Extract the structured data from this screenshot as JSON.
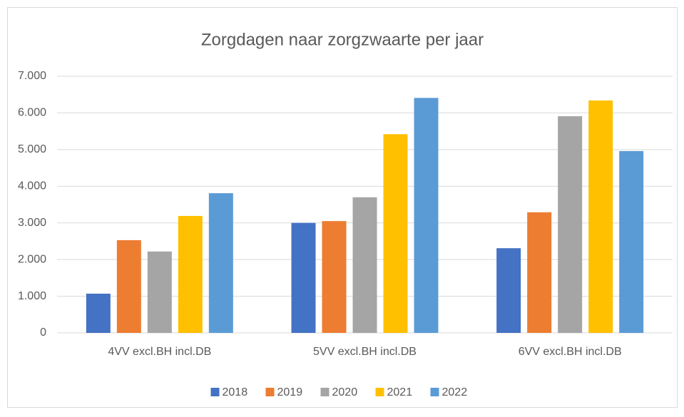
{
  "chart_data": {
    "type": "bar",
    "title": "Zorgdagen naar zorgzwaarte per jaar",
    "categories": [
      "4VV excl.BH incl.DB",
      "5VV excl.BH incl.DB",
      "6VV excl.BH incl.DB"
    ],
    "series": [
      {
        "name": "2018",
        "color": "#4472c4",
        "values": [
          1070,
          3000,
          2310
        ]
      },
      {
        "name": "2019",
        "color": "#ed7d31",
        "values": [
          2530,
          3050,
          3290
        ]
      },
      {
        "name": "2020",
        "color": "#a5a5a5",
        "values": [
          2220,
          3700,
          5910
        ]
      },
      {
        "name": "2021",
        "color": "#ffc000",
        "values": [
          3190,
          5420,
          6340
        ]
      },
      {
        "name": "2022",
        "color": "#5b9bd5",
        "values": [
          3810,
          6410,
          4960
        ]
      }
    ],
    "ylim": [
      0,
      7000
    ],
    "yticks": [
      0,
      {
        "value": 1000,
        "label": "1.000"
      },
      {
        "value": 2000,
        "label": "2.000"
      },
      {
        "value": 3000,
        "label": "3.000"
      },
      {
        "value": 4000,
        "label": "4.000"
      },
      {
        "value": 5000,
        "label": "5.000"
      },
      {
        "value": 6000,
        "label": "6.000"
      },
      {
        "value": 7000,
        "label": "7.000"
      }
    ],
    "grid": true,
    "legend": "bottom"
  }
}
